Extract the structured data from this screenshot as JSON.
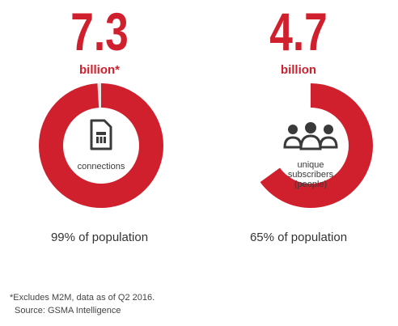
{
  "colors": {
    "accent": "#d0202e",
    "track": "#e6e6e6",
    "icon": "#3a3a3a"
  },
  "chart_data": [
    {
      "type": "pie",
      "variant": "donut",
      "value": "7.3",
      "unit": "billion*",
      "center_label": "connections",
      "center_icon": "sim-card-icon",
      "percent": 99,
      "caption": "99% of population"
    },
    {
      "type": "pie",
      "variant": "donut",
      "value": "4.7",
      "unit": "billion",
      "center_label_lines": [
        "unique",
        "subscribers",
        "(people)"
      ],
      "center_icon": "people-group-icon",
      "percent": 65,
      "caption": "65% of population"
    }
  ],
  "footnote": {
    "line1": "*Excludes M2M, data as of Q2 2016.",
    "line2": "Source: GSMA Intelligence"
  }
}
